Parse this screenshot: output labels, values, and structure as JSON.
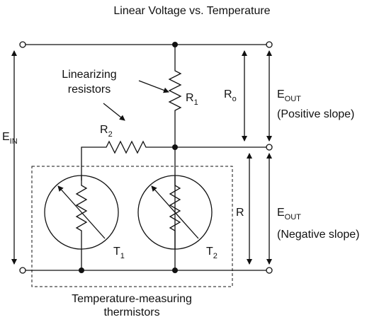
{
  "title": "Linear Voltage vs. Temperature",
  "labels": {
    "linearizing": [
      "Linearizing",
      "resistors"
    ],
    "r1": {
      "text": "R",
      "sub": "1"
    },
    "r2": {
      "text": "R",
      "sub": "2"
    },
    "ro": {
      "text": "R",
      "sub": "o"
    },
    "ein": {
      "text": "E",
      "sub": "IN"
    },
    "eout_top": {
      "text": "E",
      "sub": "OUT",
      "note": "(Positive slope)"
    },
    "r": "R",
    "eout_bottom": {
      "text": "E",
      "sub": "OUT",
      "note": "(Negative slope)"
    },
    "t1": {
      "text": "T",
      "sub": "1"
    },
    "t2": {
      "text": "T",
      "sub": "2"
    },
    "thermistors": [
      "Temperature-measuring",
      "thermistors"
    ]
  }
}
